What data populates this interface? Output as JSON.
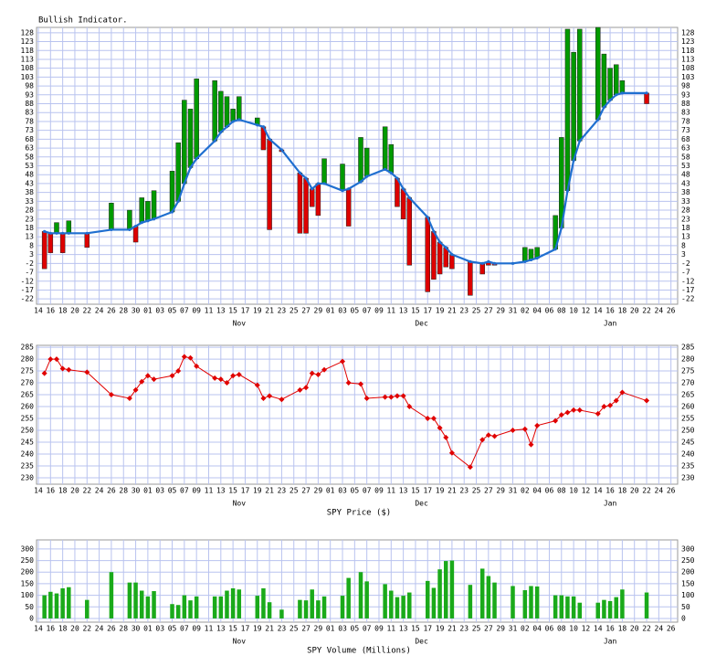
{
  "chart_data": [
    {
      "type": "bar",
      "title": "Bullish Indicator.",
      "x": [
        1,
        2,
        3,
        4,
        5,
        8,
        12,
        15,
        16,
        17,
        18,
        19,
        22,
        23,
        24,
        25,
        26,
        29,
        30,
        31,
        32,
        33,
        36,
        37,
        38,
        40,
        43,
        44,
        45,
        46,
        47,
        50,
        51,
        53,
        54,
        57,
        58,
        59,
        60,
        61,
        64,
        65,
        66,
        67,
        68,
        71,
        73,
        74,
        75,
        78,
        80,
        81,
        82,
        85,
        86,
        87,
        88,
        89,
        92,
        93,
        94,
        95,
        96,
        100
      ],
      "values": [
        -5,
        4,
        21,
        4,
        22,
        7,
        32,
        28,
        10,
        35,
        33,
        39,
        50,
        66,
        90,
        85,
        102,
        101,
        95,
        92,
        85,
        92,
        80,
        62,
        17,
        61,
        15,
        15,
        30,
        25,
        57,
        54,
        19,
        69,
        63,
        75,
        65,
        30,
        23,
        -3,
        -18,
        -11,
        -8,
        -4,
        -5,
        -20,
        -8,
        -3,
        -3,
        -2,
        7,
        6,
        7,
        25,
        69,
        130,
        117,
        130,
        131,
        116,
        108,
        110,
        101,
        88
      ],
      "line_values": [
        16,
        15,
        15,
        15,
        15,
        15,
        17,
        17,
        19,
        21,
        22,
        23,
        27,
        33,
        43,
        52,
        57,
        67,
        72,
        75,
        78,
        79,
        76,
        75,
        68,
        62,
        49,
        46,
        40,
        43,
        43,
        39,
        40,
        44,
        47,
        51,
        49,
        46,
        40,
        35,
        24,
        16,
        10,
        7,
        3,
        -1,
        -2,
        -1,
        -2,
        -2,
        -1,
        0,
        1,
        6,
        18,
        39,
        56,
        67,
        79,
        86,
        90,
        93,
        94,
        94
      ],
      "up_color": "#009a00",
      "down_color": "#dd0000",
      "line_color": "#1f6fd0",
      "xlim": [
        -0.3,
        105.1
      ],
      "ylim": [
        -25,
        131
      ],
      "yticks": [
        128,
        123,
        118,
        113,
        108,
        103,
        98,
        93,
        88,
        83,
        78,
        73,
        68,
        63,
        58,
        53,
        48,
        43,
        38,
        33,
        28,
        23,
        18,
        13,
        8,
        3,
        -2,
        -7,
        -12,
        -17,
        -22
      ],
      "xticks": [
        {
          "value": 0,
          "label": "14"
        },
        {
          "value": 2,
          "label": "16"
        },
        {
          "value": 4,
          "label": "18"
        },
        {
          "value": 6,
          "label": "20"
        },
        {
          "value": 8,
          "label": "22"
        },
        {
          "value": 10,
          "label": "24"
        },
        {
          "value": 12,
          "label": "26"
        },
        {
          "value": 14,
          "label": "28"
        },
        {
          "value": 16,
          "label": "30"
        },
        {
          "value": 18,
          "label": "01"
        },
        {
          "value": 20,
          "label": "03"
        },
        {
          "value": 22,
          "label": "05"
        },
        {
          "value": 24,
          "label": "07"
        },
        {
          "value": 26,
          "label": "09"
        },
        {
          "value": 28,
          "label": "11"
        },
        {
          "value": 30,
          "label": "13"
        },
        {
          "value": 32,
          "label": "15"
        },
        {
          "value": 34,
          "label": "17"
        },
        {
          "value": 36,
          "label": "19"
        },
        {
          "value": 38,
          "label": "21"
        },
        {
          "value": 40,
          "label": "23"
        },
        {
          "value": 42,
          "label": "25"
        },
        {
          "value": 44,
          "label": "27"
        },
        {
          "value": 46,
          "label": "29"
        },
        {
          "value": 48,
          "label": "01"
        },
        {
          "value": 50,
          "label": "03"
        },
        {
          "value": 52,
          "label": "05"
        },
        {
          "value": 54,
          "label": "07"
        },
        {
          "value": 56,
          "label": "09"
        },
        {
          "value": 58,
          "label": "11"
        },
        {
          "value": 60,
          "label": "13"
        },
        {
          "value": 62,
          "label": "15"
        },
        {
          "value": 64,
          "label": "17"
        },
        {
          "value": 66,
          "label": "19"
        },
        {
          "value": 68,
          "label": "21"
        },
        {
          "value": 70,
          "label": "23"
        },
        {
          "value": 72,
          "label": "25"
        },
        {
          "value": 74,
          "label": "27"
        },
        {
          "value": 76,
          "label": "29"
        },
        {
          "value": 78,
          "label": "31"
        },
        {
          "value": 80,
          "label": "02"
        },
        {
          "value": 82,
          "label": "04"
        },
        {
          "value": 84,
          "label": "06"
        },
        {
          "value": 86,
          "label": "08"
        },
        {
          "value": 88,
          "label": "10"
        },
        {
          "value": 90,
          "label": "12"
        },
        {
          "value": 92,
          "label": "14"
        },
        {
          "value": 94,
          "label": "16"
        },
        {
          "value": 96,
          "label": "18"
        },
        {
          "value": 98,
          "label": "20"
        },
        {
          "value": 100,
          "label": "22"
        },
        {
          "value": 102,
          "label": "24"
        },
        {
          "value": 104,
          "label": "26"
        }
      ],
      "months": [
        {
          "value": 33,
          "label": "Nov"
        },
        {
          "value": 63,
          "label": "Dec"
        },
        {
          "value": 94,
          "label": "Jan"
        }
      ],
      "grid": true
    },
    {
      "type": "line",
      "xlabel": "SPY Price ($)",
      "x": [
        1,
        2,
        3,
        4,
        5,
        8,
        12,
        15,
        16,
        17,
        18,
        19,
        22,
        23,
        24,
        25,
        26,
        29,
        30,
        31,
        32,
        33,
        36,
        37,
        38,
        40,
        43,
        44,
        45,
        46,
        47,
        50,
        51,
        53,
        54,
        57,
        58,
        59,
        60,
        61,
        64,
        65,
        66,
        67,
        68,
        71,
        73,
        74,
        75,
        78,
        80,
        81,
        82,
        85,
        86,
        87,
        88,
        89,
        92,
        93,
        94,
        95,
        96,
        100
      ],
      "values": [
        274,
        280,
        280,
        276,
        275.5,
        274.5,
        265,
        263.5,
        267,
        270.5,
        273,
        271.5,
        273,
        275,
        281,
        280.5,
        277,
        272,
        271.5,
        270,
        273,
        273.5,
        269,
        263.5,
        264.5,
        263,
        267,
        268,
        274,
        273.5,
        275.5,
        279,
        270,
        269.5,
        263.5,
        264,
        264,
        264.5,
        264.5,
        260,
        255,
        255,
        251,
        247,
        240.5,
        234.5,
        246,
        248,
        247.5,
        250,
        250.5,
        244,
        252,
        254,
        256.5,
        257.5,
        258.5,
        258.5,
        257,
        260,
        260.5,
        262.5,
        266,
        262.5
      ],
      "color": "#e00000",
      "xlim": [
        -0.3,
        105.1
      ],
      "ylim": [
        227.3,
        285.8
      ],
      "yticks": [
        285,
        280,
        275,
        270,
        265,
        260,
        255,
        250,
        245,
        240,
        235,
        230
      ],
      "xticks": [
        {
          "value": 0,
          "label": "14"
        },
        {
          "value": 2,
          "label": "16"
        },
        {
          "value": 4,
          "label": "18"
        },
        {
          "value": 6,
          "label": "20"
        },
        {
          "value": 8,
          "label": "22"
        },
        {
          "value": 10,
          "label": "24"
        },
        {
          "value": 12,
          "label": "26"
        },
        {
          "value": 14,
          "label": "28"
        },
        {
          "value": 16,
          "label": "30"
        },
        {
          "value": 18,
          "label": "01"
        },
        {
          "value": 20,
          "label": "03"
        },
        {
          "value": 22,
          "label": "05"
        },
        {
          "value": 24,
          "label": "07"
        },
        {
          "value": 26,
          "label": "09"
        },
        {
          "value": 28,
          "label": "11"
        },
        {
          "value": 30,
          "label": "13"
        },
        {
          "value": 32,
          "label": "15"
        },
        {
          "value": 34,
          "label": "17"
        },
        {
          "value": 36,
          "label": "19"
        },
        {
          "value": 38,
          "label": "21"
        },
        {
          "value": 40,
          "label": "23"
        },
        {
          "value": 42,
          "label": "25"
        },
        {
          "value": 44,
          "label": "27"
        },
        {
          "value": 46,
          "label": "29"
        },
        {
          "value": 48,
          "label": "01"
        },
        {
          "value": 50,
          "label": "03"
        },
        {
          "value": 52,
          "label": "05"
        },
        {
          "value": 54,
          "label": "07"
        },
        {
          "value": 56,
          "label": "09"
        },
        {
          "value": 58,
          "label": "11"
        },
        {
          "value": 60,
          "label": "13"
        },
        {
          "value": 62,
          "label": "15"
        },
        {
          "value": 64,
          "label": "17"
        },
        {
          "value": 66,
          "label": "19"
        },
        {
          "value": 68,
          "label": "21"
        },
        {
          "value": 70,
          "label": "23"
        },
        {
          "value": 72,
          "label": "25"
        },
        {
          "value": 74,
          "label": "27"
        },
        {
          "value": 76,
          "label": "29"
        },
        {
          "value": 78,
          "label": "31"
        },
        {
          "value": 80,
          "label": "02"
        },
        {
          "value": 82,
          "label": "04"
        },
        {
          "value": 84,
          "label": "06"
        },
        {
          "value": 86,
          "label": "08"
        },
        {
          "value": 88,
          "label": "10"
        },
        {
          "value": 90,
          "label": "12"
        },
        {
          "value": 92,
          "label": "14"
        },
        {
          "value": 94,
          "label": "16"
        },
        {
          "value": 96,
          "label": "18"
        },
        {
          "value": 98,
          "label": "20"
        },
        {
          "value": 100,
          "label": "22"
        },
        {
          "value": 102,
          "label": "24"
        },
        {
          "value": 104,
          "label": "26"
        }
      ],
      "months": [
        {
          "value": 33,
          "label": "Nov"
        },
        {
          "value": 63,
          "label": "Dec"
        },
        {
          "value": 94,
          "label": "Jan"
        }
      ],
      "grid": true
    },
    {
      "type": "bar",
      "xlabel": "SPY Volume (Millions)",
      "x": [
        1,
        2,
        3,
        4,
        5,
        8,
        12,
        15,
        16,
        17,
        18,
        19,
        22,
        23,
        24,
        25,
        26,
        29,
        30,
        31,
        32,
        33,
        36,
        37,
        38,
        40,
        43,
        44,
        45,
        46,
        47,
        50,
        51,
        53,
        54,
        57,
        58,
        59,
        60,
        61,
        64,
        65,
        66,
        67,
        68,
        71,
        73,
        74,
        75,
        78,
        80,
        81,
        82,
        85,
        86,
        87,
        88,
        89,
        92,
        93,
        94,
        95,
        96,
        100
      ],
      "values": [
        100,
        115,
        108,
        130,
        135,
        80,
        200,
        155,
        155,
        120,
        95,
        118,
        62,
        58,
        100,
        78,
        95,
        95,
        95,
        120,
        130,
        125,
        98,
        130,
        70,
        38,
        80,
        78,
        125,
        78,
        95,
        98,
        175,
        200,
        160,
        148,
        120,
        92,
        98,
        112,
        162,
        132,
        212,
        248,
        250,
        145,
        215,
        183,
        155,
        140,
        122,
        140,
        138,
        100,
        100,
        95,
        95,
        68,
        68,
        80,
        75,
        92,
        125,
        112
      ],
      "color": "#1aaa1a",
      "xlim": [
        -0.3,
        105.1
      ],
      "ylim": [
        -16,
        339
      ],
      "yticks": [
        300,
        250,
        200,
        150,
        100,
        50,
        0
      ],
      "xticks": [
        {
          "value": 0,
          "label": "14"
        },
        {
          "value": 2,
          "label": "16"
        },
        {
          "value": 4,
          "label": "18"
        },
        {
          "value": 6,
          "label": "20"
        },
        {
          "value": 8,
          "label": "22"
        },
        {
          "value": 10,
          "label": "24"
        },
        {
          "value": 12,
          "label": "26"
        },
        {
          "value": 14,
          "label": "28"
        },
        {
          "value": 16,
          "label": "30"
        },
        {
          "value": 18,
          "label": "01"
        },
        {
          "value": 20,
          "label": "03"
        },
        {
          "value": 22,
          "label": "05"
        },
        {
          "value": 24,
          "label": "07"
        },
        {
          "value": 26,
          "label": "09"
        },
        {
          "value": 28,
          "label": "11"
        },
        {
          "value": 30,
          "label": "13"
        },
        {
          "value": 32,
          "label": "15"
        },
        {
          "value": 34,
          "label": "17"
        },
        {
          "value": 36,
          "label": "19"
        },
        {
          "value": 38,
          "label": "21"
        },
        {
          "value": 40,
          "label": "23"
        },
        {
          "value": 42,
          "label": "25"
        },
        {
          "value": 44,
          "label": "27"
        },
        {
          "value": 46,
          "label": "29"
        },
        {
          "value": 48,
          "label": "01"
        },
        {
          "value": 50,
          "label": "03"
        },
        {
          "value": 52,
          "label": "05"
        },
        {
          "value": 54,
          "label": "07"
        },
        {
          "value": 56,
          "label": "09"
        },
        {
          "value": 58,
          "label": "11"
        },
        {
          "value": 60,
          "label": "13"
        },
        {
          "value": 62,
          "label": "15"
        },
        {
          "value": 64,
          "label": "17"
        },
        {
          "value": 66,
          "label": "19"
        },
        {
          "value": 68,
          "label": "21"
        },
        {
          "value": 70,
          "label": "23"
        },
        {
          "value": 72,
          "label": "25"
        },
        {
          "value": 74,
          "label": "27"
        },
        {
          "value": 76,
          "label": "29"
        },
        {
          "value": 78,
          "label": "31"
        },
        {
          "value": 80,
          "label": "02"
        },
        {
          "value": 82,
          "label": "04"
        },
        {
          "value": 84,
          "label": "06"
        },
        {
          "value": 86,
          "label": "08"
        },
        {
          "value": 88,
          "label": "10"
        },
        {
          "value": 90,
          "label": "12"
        },
        {
          "value": 92,
          "label": "14"
        },
        {
          "value": 94,
          "label": "16"
        },
        {
          "value": 96,
          "label": "18"
        },
        {
          "value": 98,
          "label": "20"
        },
        {
          "value": 100,
          "label": "22"
        },
        {
          "value": 102,
          "label": "24"
        },
        {
          "value": 104,
          "label": "26"
        }
      ],
      "months": [
        {
          "value": 33,
          "label": "Nov"
        },
        {
          "value": 63,
          "label": "Dec"
        },
        {
          "value": 94,
          "label": "Jan"
        }
      ],
      "grid": true
    }
  ]
}
